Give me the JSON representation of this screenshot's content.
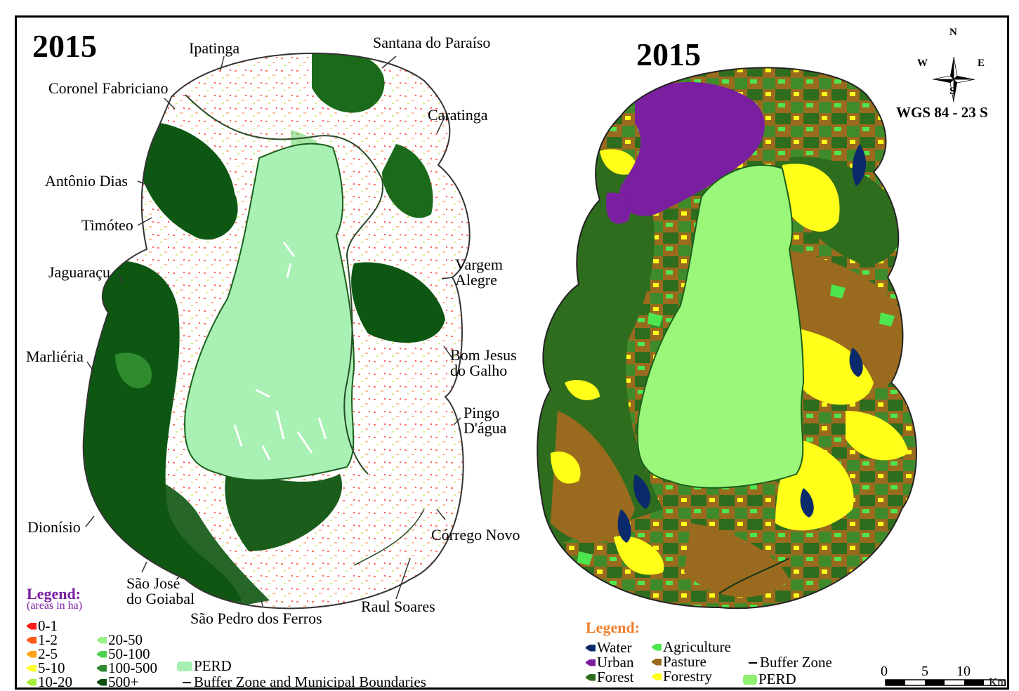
{
  "left_map": {
    "year": "2015",
    "places": {
      "ipatinga": "Ipatinga",
      "santana": "Santana do Paraíso",
      "coronel": "Coronel Fabriciano",
      "caratinga": "Caratinga",
      "antonio": "Antônio Dias",
      "timoteo": "Timóteo",
      "vargem_1": "Vargem",
      "vargem_2": "Alegre",
      "jaguaracu": "Jaguaraçu",
      "bomjesus_1": "Bom Jesus",
      "bomjesus_2": "do Galho",
      "marlieria": "Marliéria",
      "pingo_1": "Pingo",
      "pingo_2": "D'água",
      "dionisio": "Dionísio",
      "corrego": "Córrego Novo",
      "saojose_1": "São José",
      "saojose_2": "do Goiabal",
      "raul": "Raul Soares",
      "saopedro": "São Pedro dos Ferros"
    },
    "legend": {
      "title": "Legend:",
      "subtitle": "(areas in ha)",
      "title_color": "#7b1fa2",
      "classes": [
        {
          "label": "0-1",
          "color": "#ff1a1a"
        },
        {
          "label": "1-2",
          "color": "#ff5a1a"
        },
        {
          "label": "2-5",
          "color": "#ffa31a"
        },
        {
          "label": "5-10",
          "color": "#ffff33"
        },
        {
          "label": "10-20",
          "color": "#a6f03a"
        },
        {
          "label": "20-50",
          "color": "#9af08a"
        },
        {
          "label": "50-100",
          "color": "#4fd04f"
        },
        {
          "label": "100-500",
          "color": "#2e8b2e"
        },
        {
          "label": "500+",
          "color": "#0c4d10"
        }
      ],
      "perd": "PERD",
      "perd_color": "#a5f0b0",
      "boundaries": "Buffer Zone and Municipal Boundaries"
    }
  },
  "right_map": {
    "year": "2015",
    "legend": {
      "title": "Legend:",
      "title_color": "#f07f2d",
      "classes": [
        {
          "label": "Water",
          "color": "#0a2a6b"
        },
        {
          "label": "Urban",
          "color": "#7a1fa0"
        },
        {
          "label": "Forest",
          "color": "#2f6d1e"
        },
        {
          "label": "Agriculture",
          "color": "#4ee64e"
        },
        {
          "label": "Pasture",
          "color": "#9a6a1e"
        },
        {
          "label": "Forestry",
          "color": "#ffff1a"
        }
      ],
      "buffer": "Buffer Zone",
      "perd": "PERD",
      "perd_color": "#8ff06f"
    },
    "compass": {
      "n": "N",
      "s": "S",
      "e": "E",
      "w": "W"
    },
    "crs": "WGS 84 - 23 S",
    "scale": {
      "labels": [
        "0",
        "5",
        "10"
      ],
      "unit": "Km"
    }
  },
  "colors": {
    "perd_left": "#a8f0b4",
    "perd_right": "#9af77a",
    "dark_forest": "#0e5712",
    "forest": "#2f6d1e",
    "pasture": "#9a6a1e",
    "forestry": "#ffff1a",
    "urban": "#7a1fa0",
    "water": "#0a2a6b"
  }
}
